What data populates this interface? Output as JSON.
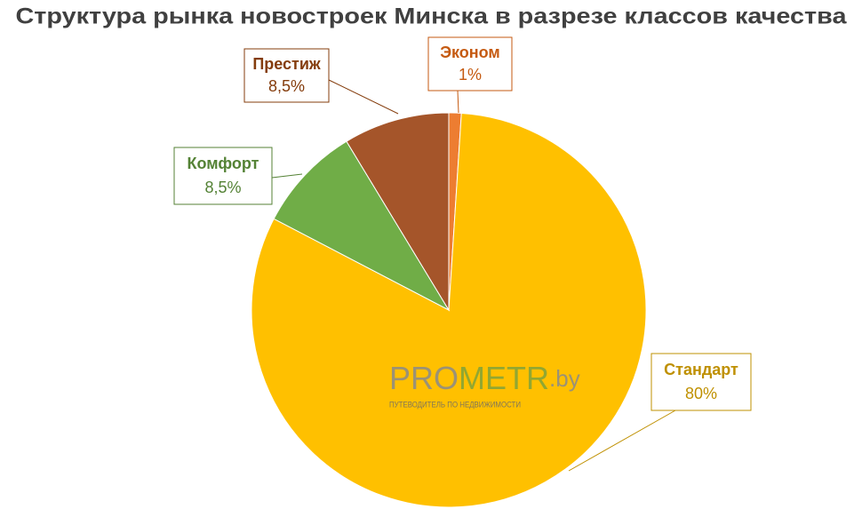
{
  "chart_data": {
    "type": "pie",
    "title": "Структура рынка новостроек Минска в разрезе классов качества",
    "categories": [
      "Эконом",
      "Стандарт",
      "Комфорт",
      "Престиж"
    ],
    "values": [
      1,
      80,
      8.5,
      8.5
    ],
    "value_labels": [
      "1%",
      "80%",
      "8,5%",
      "8,5%"
    ],
    "colors": [
      "#ed7d31",
      "#ffc000",
      "#70ad47",
      "#a5552a"
    ],
    "label_colors": [
      "#c55a11",
      "#bf9000",
      "#548235",
      "#843c0c"
    ],
    "watermark": {
      "prefix": "PRO",
      "middle": "METR",
      "suffix": ".by",
      "tagline": "ПУТЕВОДИТЕЛЬ ПО НЕДВИЖИМОСТИ"
    }
  }
}
